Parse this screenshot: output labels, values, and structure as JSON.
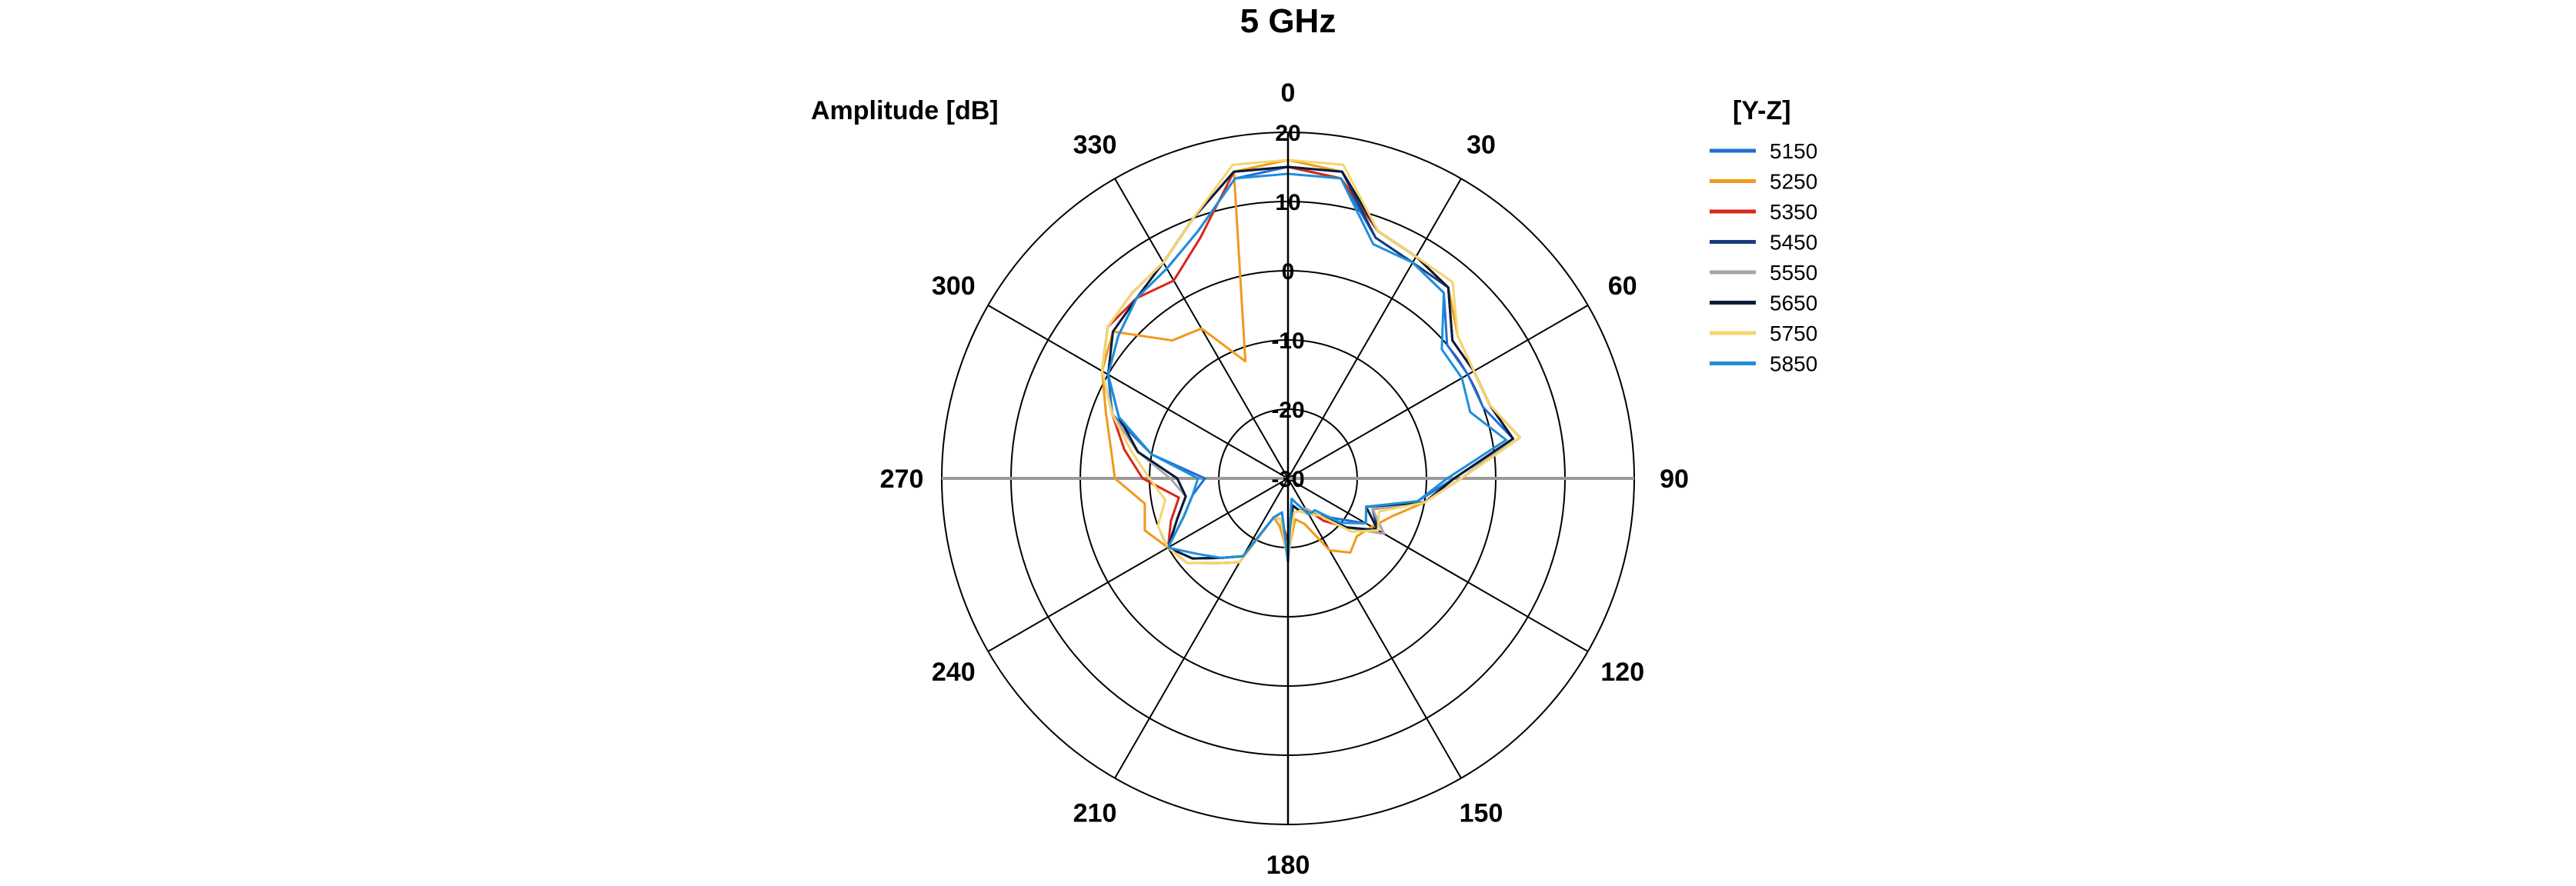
{
  "chart_data": {
    "type": "line",
    "subtype": "polar",
    "title": "5 GHz",
    "radial_label": "Amplitude [dB]",
    "radial_range": [
      -30,
      20
    ],
    "radial_ticks": [
      "-30",
      "-20",
      "-10",
      "0",
      "10",
      "20"
    ],
    "radial_tick_values": [
      -30,
      -20,
      -10,
      0,
      10,
      20
    ],
    "angle_ticks": [
      "0",
      "30",
      "60",
      "90",
      "120",
      "150",
      "180",
      "210",
      "240",
      "270",
      "300",
      "330"
    ],
    "angle_tick_values": [
      0,
      30,
      60,
      90,
      120,
      150,
      180,
      210,
      240,
      270,
      300,
      330
    ],
    "angle_direction": "clockwise",
    "zero_angle": "top",
    "grid": true,
    "legend_title": "[Y-Z]",
    "legend_position": "top-right",
    "angles": [
      0,
      10,
      20,
      30,
      40,
      50,
      60,
      70,
      80,
      90,
      100,
      110,
      120,
      130,
      140,
      150,
      160,
      170,
      180,
      190,
      200,
      210,
      220,
      230,
      240,
      250,
      260,
      270,
      280,
      290,
      300,
      310,
      320,
      330,
      340,
      350
    ],
    "series": [
      {
        "name": "5150",
        "color": "#1f6fd6",
        "values": [
          15,
          14,
          7,
          6,
          5,
          0,
          0,
          0,
          3,
          -6,
          -11,
          -18,
          -17,
          -21,
          -23,
          -24,
          -26,
          -27,
          -18,
          -25,
          -24,
          -17,
          -15,
          -12,
          -10,
          -14,
          -16,
          -18,
          -10,
          -3,
          0,
          2,
          4,
          5,
          8,
          14
        ]
      },
      {
        "name": "5250",
        "color": "#f09a1a",
        "values": [
          16,
          15,
          8,
          7,
          6,
          2,
          1,
          1,
          4,
          -5,
          -10,
          -14,
          -16,
          -17,
          -16,
          -18,
          -23,
          -24,
          -19,
          -23,
          -24,
          -16,
          -14,
          -11,
          -10,
          -8,
          -9,
          -5,
          -4,
          -2,
          1,
          3,
          -4,
          -5,
          -12,
          15
        ]
      },
      {
        "name": "5350",
        "color": "#d9261c",
        "values": [
          15,
          14,
          8,
          7,
          6,
          1,
          1,
          1,
          4,
          -5,
          -10,
          -17,
          -14,
          -19,
          -22,
          -25,
          -25,
          -25,
          -21,
          -24,
          -24,
          -16,
          -14,
          -11,
          -10,
          -12,
          -14,
          -9,
          -6,
          -3,
          1,
          4,
          4,
          3,
          7,
          15
        ]
      },
      {
        "name": "5450",
        "color": "#1a3d7a",
        "values": [
          15,
          15,
          7,
          6,
          6,
          1,
          1,
          1,
          3,
          -6,
          -10,
          -17,
          -15,
          -19,
          -23,
          -24,
          -25,
          -26,
          -19,
          -24,
          -24,
          -17,
          -15,
          -12,
          -10,
          -13,
          -15,
          -14,
          -8,
          -3,
          1,
          4,
          5,
          6,
          10,
          15
        ]
      },
      {
        "name": "5550",
        "color": "#a6a6a6",
        "values": [
          15,
          15,
          8,
          7,
          6,
          1,
          1,
          1,
          3,
          -5,
          -10,
          -17,
          -14,
          -19,
          -23,
          -25,
          -25,
          -26,
          -19,
          -24,
          -24,
          -17,
          -15,
          -12,
          -10,
          -13,
          -15,
          -13,
          -8,
          -3,
          1,
          4,
          5,
          6,
          10,
          15
        ]
      },
      {
        "name": "5650",
        "color": "#0b1a3a",
        "values": [
          15,
          15,
          8,
          7,
          6,
          1,
          1,
          1,
          3,
          -6,
          -10,
          -18,
          -15,
          -19,
          -23,
          -24,
          -25,
          -26,
          -18,
          -24,
          -24,
          -17,
          -15,
          -12,
          -10,
          -13,
          -15,
          -14,
          -8,
          -4,
          0,
          3,
          4,
          6,
          10,
          15
        ]
      },
      {
        "name": "5750",
        "color": "#f5d66b",
        "values": [
          16,
          16,
          8,
          7,
          7,
          2,
          1,
          1,
          4,
          -5,
          -10,
          -16,
          -15,
          -18,
          -23,
          -24,
          -25,
          -25,
          -18,
          -24,
          -24,
          -16,
          -14,
          -11,
          -10,
          -10,
          -12,
          -10,
          -7,
          -3,
          1,
          4,
          5,
          6,
          10,
          16
        ]
      },
      {
        "name": "5850",
        "color": "#1e8fd8",
        "values": [
          14,
          14,
          6,
          6,
          5,
          -1,
          -1,
          -2,
          2,
          -7,
          -11,
          -18,
          -17,
          -20,
          -24,
          -24,
          -26,
          -27,
          -18,
          -25,
          -24,
          -17,
          -15,
          -13,
          -10,
          -14,
          -16,
          -17,
          -10,
          -4,
          0,
          2,
          4,
          5,
          8,
          14
        ]
      }
    ]
  }
}
